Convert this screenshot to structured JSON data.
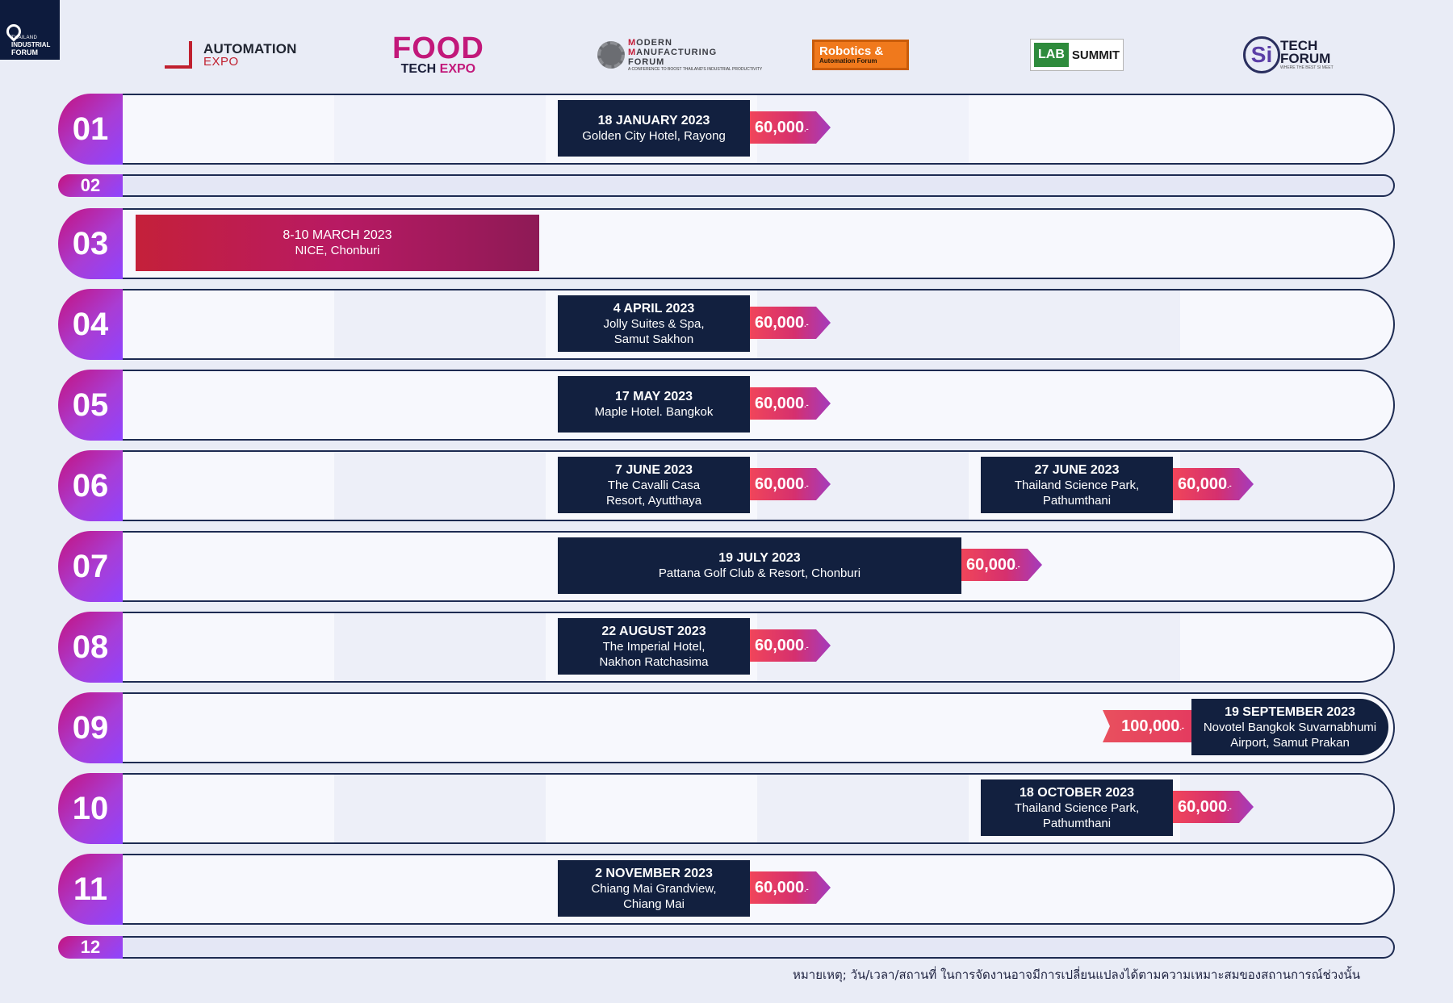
{
  "corner_logo": {
    "line1": "THAILAND",
    "line2": "INDUSTRIAL",
    "line3": "FORUM"
  },
  "logos": {
    "automation": {
      "line1": "AUTOMATION",
      "line2": "EXPO"
    },
    "food": {
      "line1": "FOOD",
      "line2a": "TECH ",
      "line2b": "EXPO"
    },
    "mmf": {
      "line1a": "M",
      "line1b": "ODERN",
      "line2a": "M",
      "line2b": "ANUFACTURING",
      "line3": "FORUM",
      "tagline": "A CONFERENCE TO BOOST THAILAND'S INDUSTRIAL PRODUCTIVITY"
    },
    "robotics": {
      "line1": "Robotics &",
      "line2": "Automation Forum"
    },
    "lab": {
      "left": "LAB",
      "right": "SUMMIT"
    },
    "si": {
      "mark": "Si",
      "line1": "TECH",
      "line2": "FORUM",
      "tagline": "WHERE THE BEST SI MEET"
    }
  },
  "months": {
    "m01": "01",
    "m02": "02",
    "m03": "03",
    "m04": "04",
    "m05": "05",
    "m06": "06",
    "m07": "07",
    "m08": "08",
    "m09": "09",
    "m10": "10",
    "m11": "11",
    "m12": "12"
  },
  "events": {
    "jan": {
      "date": "18 JANUARY 2023",
      "venue": "Golden City Hotel, Rayong",
      "price": "60,000",
      "suffix": ".-"
    },
    "mar": {
      "date": "8-10 MARCH 2023",
      "venue": "NICE, Chonburi"
    },
    "apr": {
      "date": "4 APRIL 2023",
      "venue1": "Jolly Suites & Spa,",
      "venue2": "Samut Sakhon",
      "price": "60,000",
      "suffix": ".-"
    },
    "may": {
      "date": "17 MAY 2023",
      "venue": "Maple Hotel. Bangkok",
      "price": "60,000",
      "suffix": ".-"
    },
    "jun1": {
      "date": "7 JUNE 2023",
      "venue1": "The Cavalli Casa",
      "venue2": "Resort, Ayutthaya",
      "price": "60,000",
      "suffix": ".-"
    },
    "jun2": {
      "date": "27 JUNE 2023",
      "venue1": "Thailand Science Park,",
      "venue2": "Pathumthani",
      "price": "60,000",
      "suffix": ".-"
    },
    "jul": {
      "date": "19 JULY 2023",
      "venue": "Pattana Golf Club & Resort, Chonburi",
      "price": "60,000",
      "suffix": ".-"
    },
    "aug": {
      "date": "22 AUGUST 2023",
      "venue1": "The Imperial Hotel,",
      "venue2": "Nakhon Ratchasima",
      "price": "60,000",
      "suffix": ".-"
    },
    "sep": {
      "date": "19 SEPTEMBER 2023",
      "venue1": "Novotel Bangkok Suvarnabhumi",
      "venue2": "Airport, Samut Prakan",
      "price": "100,000",
      "suffix": ".-"
    },
    "oct": {
      "date": "18 OCTOBER 2023",
      "venue1": "Thailand Science Park,",
      "venue2": "Pathumthani",
      "price": "60,000",
      "suffix": ".-"
    },
    "nov": {
      "date": "2 NOVEMBER 2023",
      "venue1": "Chiang Mai Grandview,",
      "venue2": "Chiang Mai",
      "price": "60,000",
      "suffix": ".-"
    }
  },
  "note": "หมายเหตุ; วัน/เวลา/สถานที่ ในการจัดงานอาจมีการเปลี่ยนแปลงได้ตามความเหมาะสมของสถานการณ์ช่วงนั้น",
  "colors": {
    "navy": "#12203f",
    "magenta": "#c4127e",
    "purple": "#8e44ff",
    "price_red": "#f0455a",
    "background": "#e9ecf6"
  }
}
